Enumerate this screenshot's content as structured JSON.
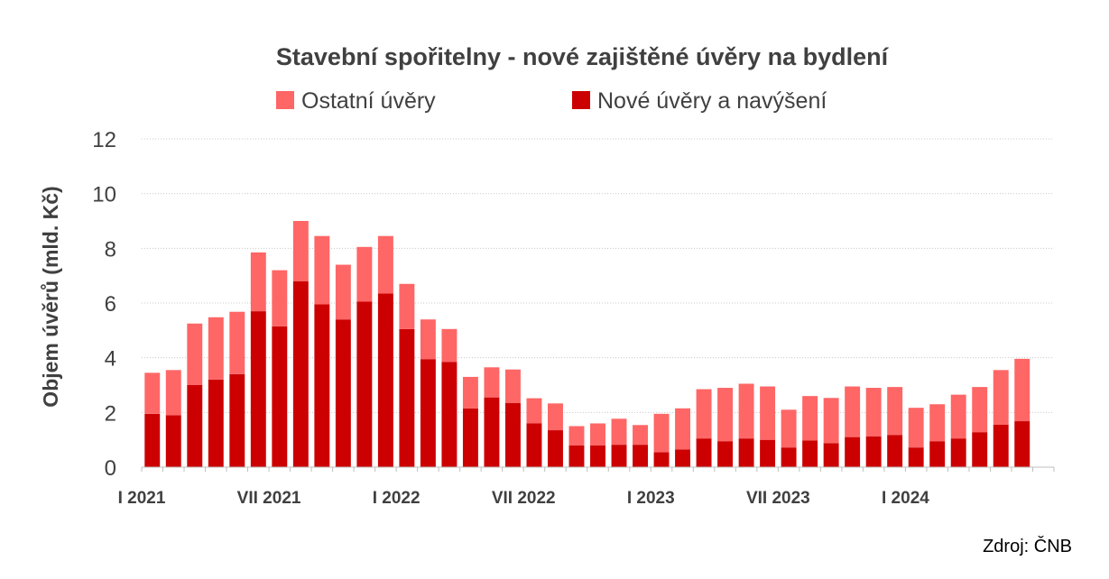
{
  "chart_data": {
    "type": "bar",
    "stacked": true,
    "title": "Stavební spořitelny - nové zajištěné úvěry na bydlení",
    "ylabel": "Objem úvěrů (mld. Kč)",
    "xlabel": "",
    "ylim": [
      0,
      12
    ],
    "yticks": [
      "0",
      "2",
      "4",
      "6",
      "8",
      "10",
      "12"
    ],
    "grid": true,
    "legend_position": "top",
    "x_tick_labels": [
      {
        "index": 0,
        "label": "I 2021"
      },
      {
        "index": 6,
        "label": "VII 2021"
      },
      {
        "index": 12,
        "label": "I 2022"
      },
      {
        "index": 18,
        "label": "VII 2022"
      },
      {
        "index": 24,
        "label": "I 2023"
      },
      {
        "index": 30,
        "label": "VII 2023"
      },
      {
        "index": 36,
        "label": "I 2024"
      }
    ],
    "categories": [
      "I 2021",
      "II 2021",
      "III 2021",
      "IV 2021",
      "V 2021",
      "VI 2021",
      "VII 2021",
      "VIII 2021",
      "IX 2021",
      "X 2021",
      "XI 2021",
      "XII 2021",
      "I 2022",
      "II 2022",
      "III 2022",
      "IV 2022",
      "V 2022",
      "VI 2022",
      "VII 2022",
      "VIII 2022",
      "IX 2022",
      "X 2022",
      "XI 2022",
      "XII 2022",
      "I 2023",
      "II 2023",
      "III 2023",
      "IV 2023",
      "V 2023",
      "VI 2023",
      "VII 2023",
      "VIII 2023",
      "IX 2023",
      "X 2023",
      "XI 2023",
      "XII 2023",
      "I 2024",
      "II 2024",
      "III 2024",
      "IV 2024",
      "V 2024",
      "VI 2024",
      "VII 2024"
    ],
    "series": [
      {
        "name": "Nové úvěry a navýšení",
        "color": "#cc0000",
        "values": [
          1.95,
          1.9,
          3.0,
          3.2,
          3.4,
          5.7,
          5.15,
          6.8,
          5.95,
          5.4,
          6.05,
          6.35,
          5.05,
          3.95,
          3.85,
          2.15,
          2.55,
          2.35,
          1.6,
          1.35,
          0.8,
          0.8,
          0.82,
          0.82,
          0.55,
          0.65,
          1.05,
          0.95,
          1.05,
          1.0,
          0.72,
          0.98,
          0.88,
          1.1,
          1.12,
          1.18,
          0.72,
          0.95,
          1.05,
          1.28,
          1.55,
          1.68,
          0
        ]
      },
      {
        "name": "Ostatní úvěry",
        "color": "#ff6666",
        "values": [
          1.5,
          1.65,
          2.25,
          2.28,
          2.28,
          2.15,
          2.05,
          2.2,
          2.5,
          2.0,
          2.0,
          2.1,
          1.65,
          1.45,
          1.2,
          1.15,
          1.1,
          1.22,
          0.92,
          0.98,
          0.7,
          0.8,
          0.95,
          0.72,
          1.4,
          1.5,
          1.8,
          1.95,
          2.0,
          1.95,
          1.38,
          1.62,
          1.65,
          1.85,
          1.78,
          1.75,
          1.45,
          1.35,
          1.6,
          1.65,
          2.0,
          2.28,
          0
        ]
      }
    ],
    "source": "Zdroj: ČNB"
  }
}
